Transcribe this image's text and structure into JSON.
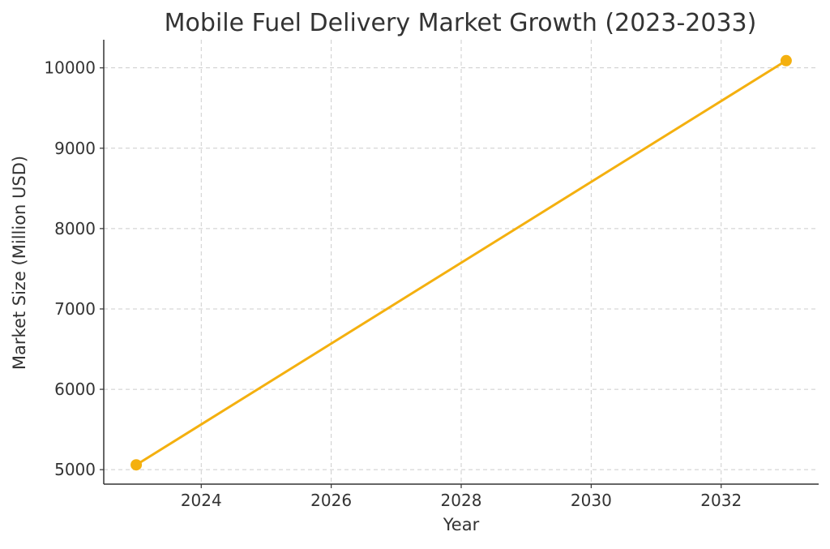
{
  "chart_data": {
    "type": "line",
    "title": "Mobile Fuel Delivery Market Growth (2023-2033)",
    "xlabel": "Year",
    "ylabel": "Market Size (Million USD)",
    "xlim": [
      2022.5,
      2033.5
    ],
    "ylim": [
      4820,
      10350
    ],
    "x_ticks": [
      2024,
      2026,
      2028,
      2030,
      2032
    ],
    "y_ticks": [
      5000,
      6000,
      7000,
      8000,
      9000,
      10000
    ],
    "grid": true,
    "series": [
      {
        "x": [
          2023,
          2033
        ],
        "y": [
          5060,
          10090
        ],
        "color": "#f4b00f",
        "marker": "circle"
      }
    ]
  }
}
